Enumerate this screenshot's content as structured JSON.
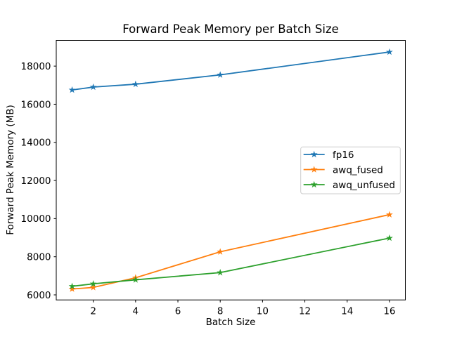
{
  "chart_data": {
    "type": "line",
    "title": "Forward Peak Memory per Batch Size",
    "xlabel": "Batch Size",
    "ylabel": "Forward Peak Memory (MB)",
    "x": [
      1,
      2,
      4,
      8,
      16
    ],
    "series": [
      {
        "name": "fp16",
        "color": "#1f77b4",
        "marker": "star",
        "values": [
          16750,
          16900,
          17050,
          17540,
          18740
        ]
      },
      {
        "name": "awq_fused",
        "color": "#ff7f0e",
        "marker": "star",
        "values": [
          6310,
          6390,
          6900,
          8260,
          10210
        ]
      },
      {
        "name": "awq_unfused",
        "color": "#2ca02c",
        "marker": "star",
        "values": [
          6450,
          6580,
          6790,
          7170,
          8980
        ]
      }
    ],
    "xlim": [
      0.25,
      16.75
    ],
    "ylim": [
      5735,
      19350
    ],
    "xticks": [
      2,
      4,
      6,
      8,
      10,
      12,
      14,
      16
    ],
    "yticks": [
      6000,
      8000,
      10000,
      12000,
      14000,
      16000,
      18000
    ],
    "grid": false,
    "legend": {
      "position": "center-right",
      "entries": [
        "fp16",
        "awq_fused",
        "awq_unfused"
      ]
    }
  }
}
